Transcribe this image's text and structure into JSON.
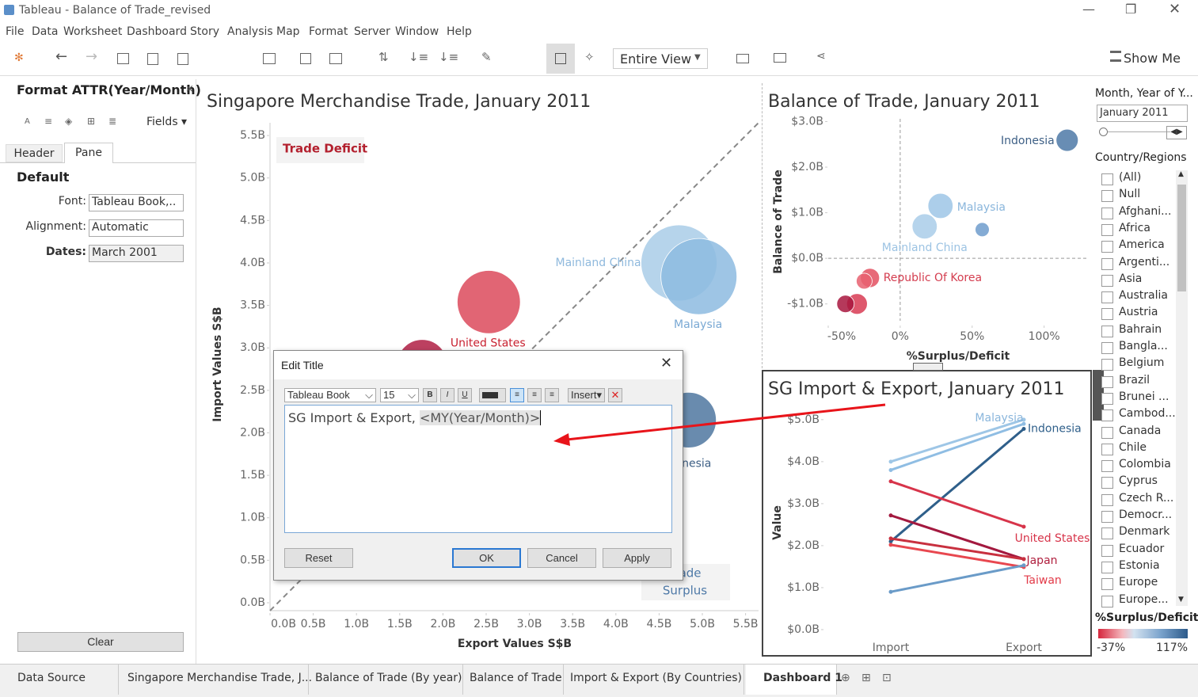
{
  "window": {
    "title": "Tableau - Balance of Trade_revised"
  },
  "menu": [
    "File",
    "Data",
    "Worksheet",
    "Dashboard",
    "Story",
    "Analysis",
    "Map",
    "Format",
    "Server",
    "Window",
    "Help"
  ],
  "toolbar": {
    "view": "Entire View",
    "show_me": "Show Me"
  },
  "format_panel": {
    "title": "Format ATTR(Year/Month)",
    "fields": "Fields",
    "tabs": [
      "Header",
      "Pane"
    ],
    "section": "Default",
    "rows": [
      {
        "label": "Font:",
        "value": "Tableau Book,.."
      },
      {
        "label": "Alignment:",
        "value": "Automatic"
      },
      {
        "label": "Dates:",
        "value": "March 2001"
      }
    ],
    "clear": "Clear"
  },
  "chart_data": [
    {
      "type": "scatter",
      "title": "Singapore Merchandise Trade, January 2011",
      "x_label": "Export Values S$B",
      "y_label": "Import Values S$B",
      "annotation_deficit": "Trade Deficit",
      "annotation_surplus": [
        "Trade",
        "Surplus"
      ],
      "xlim": [
        0,
        5.65
      ],
      "ylim": [
        0,
        5.65
      ],
      "grid": false,
      "xticks": [
        {
          "value": 0,
          "label": "0.0B"
        },
        {
          "value": 0.5,
          "label": "0.5B"
        },
        {
          "value": 1,
          "label": "1.0B"
        },
        {
          "value": 1.5,
          "label": "1.5B"
        },
        {
          "value": 2,
          "label": "2.0B"
        },
        {
          "value": 2.5,
          "label": "2.5B"
        },
        {
          "value": 3,
          "label": "3.0B"
        },
        {
          "value": 3.5,
          "label": "3.5B"
        },
        {
          "value": 4,
          "label": "4.0B"
        },
        {
          "value": 4.5,
          "label": "4.5B"
        },
        {
          "value": 5,
          "label": "5.0B"
        },
        {
          "value": 5.5,
          "label": "5.5B"
        }
      ],
      "yticks": [
        {
          "value": 0,
          "label": "0.0B"
        },
        {
          "value": 0.5,
          "label": "0.5B"
        },
        {
          "value": 1,
          "label": "1.0B"
        },
        {
          "value": 1.5,
          "label": "1.5B"
        },
        {
          "value": 2,
          "label": "2.0B"
        },
        {
          "value": 2.5,
          "label": "2.5B"
        },
        {
          "value": 3,
          "label": "3.0B"
        },
        {
          "value": 3.5,
          "label": "3.5B"
        },
        {
          "value": 4,
          "label": "4.0B"
        },
        {
          "value": 4.5,
          "label": "4.5B"
        },
        {
          "value": 5,
          "label": "5.0B"
        },
        {
          "value": 5.5,
          "label": "5.5B"
        }
      ],
      "points": [
        {
          "name": "Mainland China",
          "x": 4.73,
          "y": 4.0,
          "size": 9.0,
          "color": "#a9cce8",
          "label_color": "#8fb9dd"
        },
        {
          "name": "Malaysia",
          "x": 4.96,
          "y": 3.84,
          "size": 9.0,
          "color": "#8dbbe0",
          "label_color": "#7aa9d4"
        },
        {
          "name": "United States",
          "x": 2.53,
          "y": 3.54,
          "size": 6.2,
          "color": "#dc4a5c",
          "label_color": "#c8202f"
        },
        {
          "name": null,
          "x": 1.76,
          "y": 2.8,
          "size": 4.0,
          "color": "#b01e44",
          "label_color": "#b01e44"
        },
        {
          "name": "Indonesia",
          "x": 4.84,
          "y": 2.15,
          "size": 4.8,
          "color": "#4f77a0",
          "label_color": "#3d5f85"
        }
      ]
    },
    {
      "type": "scatter",
      "title": "Balance of Trade, January 2011",
      "x_label": "%Surplus/Deficit",
      "y_label": "Balance of Trade",
      "xlim": [
        -50,
        131
      ],
      "ylim": [
        -1.37,
        3.06
      ],
      "grid": false,
      "xticks": [
        {
          "value": -50,
          "label": "-50%"
        },
        {
          "value": 0,
          "label": "0%"
        },
        {
          "value": 50,
          "label": "50%"
        },
        {
          "value": 100,
          "label": "100%"
        }
      ],
      "yticks": [
        {
          "value": -1,
          "label": "-$1.0B"
        },
        {
          "value": 0,
          "label": "$0.0B"
        },
        {
          "value": 1,
          "label": "$1.0B"
        },
        {
          "value": 2,
          "label": "$2.0B"
        },
        {
          "value": 3,
          "label": "$3.0B"
        }
      ],
      "points": [
        {
          "name": "Indonesia",
          "x": 116,
          "y": 2.59,
          "size": 7.8,
          "color": "#4e79a7",
          "label_color": "#3d5f85"
        },
        {
          "name": "Malaysia",
          "x": 28,
          "y": 1.15,
          "size": 10,
          "color": "#9ec6e6",
          "label_color": "#8ab6dc"
        },
        {
          "name": "Mainland China",
          "x": 17,
          "y": 0.7,
          "size": 10,
          "color": "#a9cde9",
          "label_color": "#9cc3e3"
        },
        {
          "name": null,
          "x": 57,
          "y": 0.63,
          "size": 3.2,
          "color": "#6f9ccc",
          "label_color": "#6f9ccc"
        },
        {
          "name": "Republic Of Korea",
          "x": -21,
          "y": -0.43,
          "size": 5.8,
          "color": "#e35060",
          "label_color": "#d43d4f"
        },
        {
          "name": null,
          "x": -25,
          "y": -0.5,
          "size": 4,
          "color": "#e86070",
          "label_color": "#e86070"
        },
        {
          "name": null,
          "x": -30,
          "y": -1.0,
          "size": 6.8,
          "color": "#d83b53",
          "label_color": "#d83b53"
        },
        {
          "name": null,
          "x": -38,
          "y": -1.0,
          "size": 4.8,
          "color": "#a8163e",
          "label_color": "#a8163e"
        }
      ]
    },
    {
      "type": "line",
      "title": "SG Import & Export, January 2011",
      "y_label": "Value",
      "categories": [
        "Import",
        "Export"
      ],
      "ylim": [
        -0.19,
        5.28
      ],
      "grid": false,
      "yticks": [
        {
          "value": 0,
          "label": "$0.0B"
        },
        {
          "value": 1,
          "label": "$1.0B"
        },
        {
          "value": 2,
          "label": "$2.0B"
        },
        {
          "value": 3,
          "label": "$3.0B"
        },
        {
          "value": 4,
          "label": "$4.0B"
        },
        {
          "value": 5,
          "label": "$5.0B"
        }
      ],
      "series": [
        {
          "name": "Malaysia",
          "color": "#9ec6e6",
          "label_color": "#8ab6dc",
          "values": [
            4.0,
            5.0
          ]
        },
        {
          "name": null,
          "color": "#8fbde3",
          "label_color": "#8fbde3",
          "values": [
            3.8,
            4.9
          ]
        },
        {
          "name": "Indonesia",
          "color": "#2f5f8a",
          "label_color": "#2f5f8a",
          "values": [
            2.1,
            4.78
          ]
        },
        {
          "name": "United States",
          "color": "#d7344a",
          "label_color": "#d7344a",
          "values": [
            3.53,
            2.45
          ]
        },
        {
          "name": "Japan",
          "color": "#a3193f",
          "label_color": "#b0203f",
          "values": [
            2.72,
            1.68
          ]
        },
        {
          "name": null,
          "color": "#c8303f",
          "label_color": "#c8303f",
          "values": [
            2.17,
            1.68
          ]
        },
        {
          "name": "Taiwan",
          "color": "#e8474f",
          "label_color": "#e23a48",
          "values": [
            2.02,
            1.49
          ]
        },
        {
          "name": null,
          "color": "#6a9bc8",
          "label_color": "#6a9bc8",
          "values": [
            0.9,
            1.53
          ]
        }
      ]
    }
  ],
  "dialog": {
    "title": "Edit Title",
    "font": "Tableau Book",
    "size": "15",
    "insert": "Insert",
    "text": "SG Import & Export, ",
    "field": "<MY(Year/Month)>",
    "buttons": [
      "Reset",
      "OK",
      "Cancel",
      "Apply"
    ]
  },
  "filters": {
    "month_title": "Month, Year of Y...",
    "month_value": "January 2011",
    "country_title": "Country/Regions",
    "items": [
      "(All)",
      "Null",
      "Afghani...",
      "Africa",
      "America",
      "Argenti...",
      "Asia",
      "Australia",
      "Austria",
      "Bahrain",
      "Bangla...",
      "Belgium",
      "Brazil",
      "Brunei ...",
      "Cambod...",
      "Canada",
      "Chile",
      "Colombia",
      "Cyprus",
      "Czech R...",
      "Democr...",
      "Denmark",
      "Ecuador",
      "Estonia",
      "Europe",
      "Europe..."
    ],
    "legend_title": "%Surplus/Deficit",
    "legend_min": "-37%",
    "legend_max": "117%"
  },
  "tabs": [
    "Data Source",
    "Singapore Merchandise Trade, J...",
    "Balance of Trade (By year)",
    "Balance of Trade",
    "Import & Export (By Countries)",
    "Dashboard 1"
  ]
}
